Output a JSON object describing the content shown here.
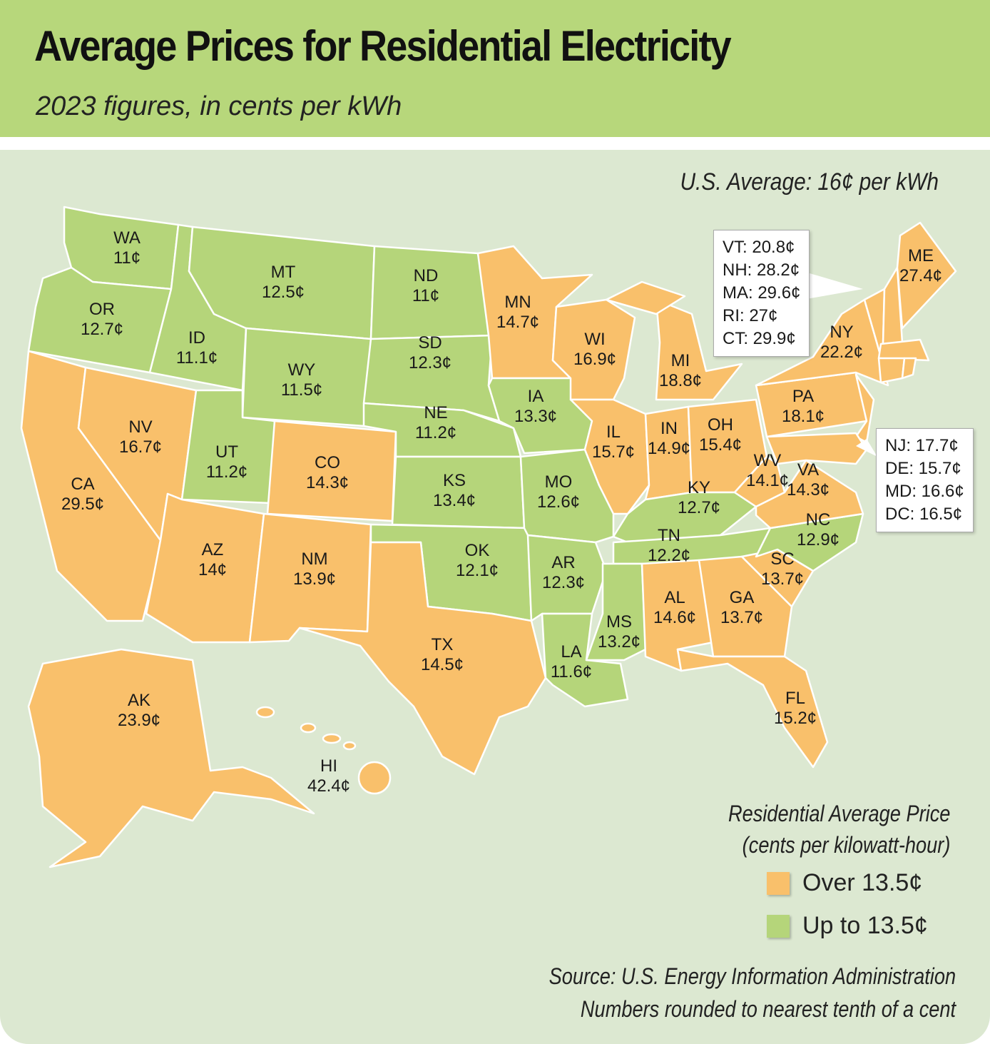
{
  "header": {
    "title": "Average Prices for Residential Electricity",
    "subtitle": "2023 figures, in cents per kWh"
  },
  "us_average": "U.S. Average: 16¢ per kWh",
  "colors": {
    "over": "#f9c06b",
    "up_to": "#b5d57a",
    "header": "#b7d77b",
    "background": "#dce8d1"
  },
  "threshold_cents": 13.5,
  "states": {
    "WA": {
      "label": "WA",
      "value": "11¢",
      "cat": "g"
    },
    "OR": {
      "label": "OR",
      "value": "12.7¢",
      "cat": "g"
    },
    "CA": {
      "label": "CA",
      "value": "29.5¢",
      "cat": "o"
    },
    "NV": {
      "label": "NV",
      "value": "16.7¢",
      "cat": "o"
    },
    "ID": {
      "label": "ID",
      "value": "11.1¢",
      "cat": "g"
    },
    "MT": {
      "label": "MT",
      "value": "12.5¢",
      "cat": "g"
    },
    "WY": {
      "label": "WY",
      "value": "11.5¢",
      "cat": "g"
    },
    "UT": {
      "label": "UT",
      "value": "11.2¢",
      "cat": "g"
    },
    "CO": {
      "label": "CO",
      "value": "14.3¢",
      "cat": "o"
    },
    "AZ": {
      "label": "AZ",
      "value": "14¢",
      "cat": "o"
    },
    "NM": {
      "label": "NM",
      "value": "13.9¢",
      "cat": "o"
    },
    "ND": {
      "label": "ND",
      "value": "11¢",
      "cat": "g"
    },
    "SD": {
      "label": "SD",
      "value": "12.3¢",
      "cat": "g"
    },
    "NE": {
      "label": "NE",
      "value": "11.2¢",
      "cat": "g"
    },
    "KS": {
      "label": "KS",
      "value": "13.4¢",
      "cat": "g"
    },
    "OK": {
      "label": "OK",
      "value": "12.1¢",
      "cat": "g"
    },
    "TX": {
      "label": "TX",
      "value": "14.5¢",
      "cat": "o"
    },
    "MN": {
      "label": "MN",
      "value": "14.7¢",
      "cat": "o"
    },
    "IA": {
      "label": "IA",
      "value": "13.3¢",
      "cat": "g"
    },
    "MO": {
      "label": "MO",
      "value": "12.6¢",
      "cat": "g"
    },
    "AR": {
      "label": "AR",
      "value": "12.3¢",
      "cat": "g"
    },
    "LA": {
      "label": "LA",
      "value": "11.6¢",
      "cat": "g"
    },
    "WI": {
      "label": "WI",
      "value": "16.9¢",
      "cat": "o"
    },
    "IL": {
      "label": "IL",
      "value": "15.7¢",
      "cat": "o"
    },
    "MI": {
      "label": "MI",
      "value": "18.8¢",
      "cat": "o"
    },
    "IN": {
      "label": "IN",
      "value": "14.9¢",
      "cat": "o"
    },
    "OH": {
      "label": "OH",
      "value": "15.4¢",
      "cat": "o"
    },
    "KY": {
      "label": "KY",
      "value": "12.7¢",
      "cat": "g"
    },
    "TN": {
      "label": "TN",
      "value": "12.2¢",
      "cat": "g"
    },
    "MS": {
      "label": "MS",
      "value": "13.2¢",
      "cat": "g"
    },
    "AL": {
      "label": "AL",
      "value": "14.6¢",
      "cat": "o"
    },
    "GA": {
      "label": "GA",
      "value": "13.7¢",
      "cat": "o"
    },
    "SC": {
      "label": "SC",
      "value": "13.7¢",
      "cat": "o"
    },
    "NC": {
      "label": "NC",
      "value": "12.9¢",
      "cat": "g"
    },
    "FL": {
      "label": "FL",
      "value": "15.2¢",
      "cat": "o"
    },
    "WV": {
      "label": "WV",
      "value": "14.1¢",
      "cat": "o"
    },
    "VA": {
      "label": "VA",
      "value": "14.3¢",
      "cat": "o"
    },
    "PA": {
      "label": "PA",
      "value": "18.1¢",
      "cat": "o"
    },
    "NY": {
      "label": "NY",
      "value": "22.2¢",
      "cat": "o"
    },
    "ME": {
      "label": "ME",
      "value": "27.4¢",
      "cat": "o"
    },
    "AK": {
      "label": "AK",
      "value": "23.9¢",
      "cat": "o"
    },
    "HI": {
      "label": "HI",
      "value": "42.4¢",
      "cat": "o"
    }
  },
  "callout_northeast": [
    "VT: 20.8¢",
    "NH: 28.2¢",
    "MA: 29.6¢",
    "RI: 27¢",
    "CT: 29.9¢"
  ],
  "callout_midatlantic": [
    "NJ: 17.7¢",
    "DE: 15.7¢",
    "MD: 16.6¢",
    "DC: 16.5¢"
  ],
  "legend": {
    "title_line1": "Residential Average Price",
    "title_line2": "(cents per kilowatt-hour)",
    "over": "Over 13.5¢",
    "up_to": "Up to 13.5¢"
  },
  "source": {
    "line1": "Source: U.S. Energy Information Administration",
    "line2": "Numbers rounded to nearest tenth of a cent"
  }
}
